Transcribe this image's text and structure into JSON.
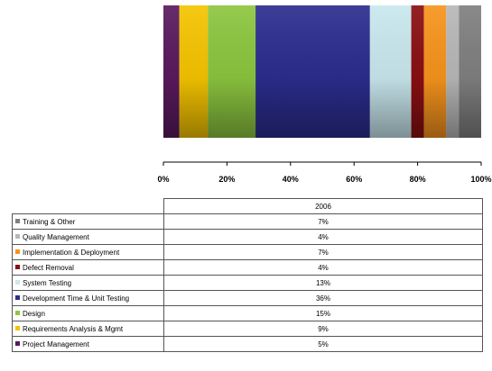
{
  "chart_data": {
    "type": "bar",
    "stacked": true,
    "orientation": "vertical",
    "percent_stacked": true,
    "categories": [
      "2006"
    ],
    "xlabel": "",
    "ylabel": "",
    "value_axis_ticks": [
      "0%",
      "20%",
      "40%",
      "60%",
      "80%",
      "100%"
    ],
    "value_axis_range": [
      0,
      100
    ],
    "grid": false,
    "legend_placement": "table-below",
    "series": [
      {
        "name": "Project Management",
        "values": [
          5
        ],
        "color": "#5a1a5e",
        "label": "5%"
      },
      {
        "name": "Requirements Analysis & Mgmt",
        "values": [
          9
        ],
        "color": "#f5c400",
        "label": "9%"
      },
      {
        "name": "Design",
        "values": [
          15
        ],
        "color": "#8cc63f",
        "label": "15%"
      },
      {
        "name": "Development Time & Unit Testing",
        "values": [
          36
        ],
        "color": "#2b2d8e",
        "label": "36%"
      },
      {
        "name": "System Testing",
        "values": [
          13
        ],
        "color": "#c9e8ef",
        "label": "13%"
      },
      {
        "name": "Defect Removal",
        "values": [
          4
        ],
        "color": "#8b0f12",
        "label": "4%"
      },
      {
        "name": "Implementation & Deployment",
        "values": [
          7
        ],
        "color": "#f7941d",
        "label": "7%"
      },
      {
        "name": "Quality Management",
        "values": [
          4
        ],
        "color": "#b8b8b8",
        "label": "4%"
      },
      {
        "name": "Training & Other",
        "values": [
          7
        ],
        "color": "#808080",
        "label": "7%"
      }
    ],
    "table_order": [
      "Training & Other",
      "Quality Management",
      "Implementation & Deployment",
      "Defect Removal",
      "System Testing",
      "Development Time & Unit Testing",
      "Design",
      "Requirements Analysis & Mgmt",
      "Project Management"
    ]
  }
}
